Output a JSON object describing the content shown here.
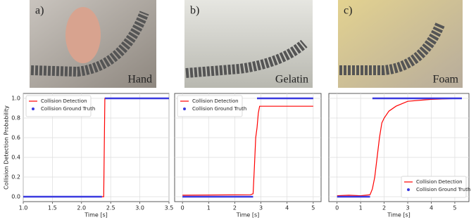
{
  "panels": [
    {
      "letter": "a)",
      "label": "Hand"
    },
    {
      "letter": "b)",
      "label": "Gelatin"
    },
    {
      "letter": "c)",
      "label": "Foam"
    }
  ],
  "chart_data": [
    {
      "type": "line",
      "ylabel": "Collision Detection Probability",
      "xlabel": "Time [s]",
      "xlim": [
        1.0,
        3.5
      ],
      "xticks": [
        {
          "value": 1.0,
          "label": "1.0"
        },
        {
          "value": 1.5,
          "label": "1.5"
        },
        {
          "value": 2.0,
          "label": "2.0"
        },
        {
          "value": 2.5,
          "label": "2.5"
        },
        {
          "value": 3.0,
          "label": "3.0"
        },
        {
          "value": 3.5,
          "label": "3.5"
        }
      ],
      "ylim": [
        -0.05,
        1.05
      ],
      "yticks": [
        {
          "value": 0,
          "label": "0.0"
        },
        {
          "value": 0.2,
          "label": "0.2"
        },
        {
          "value": 0.4,
          "label": "0.4"
        },
        {
          "value": 0.6,
          "label": "0.6"
        },
        {
          "value": 0.8,
          "label": "0.8"
        },
        {
          "value": 1.0,
          "label": "1.0"
        }
      ],
      "ytick_labels": true,
      "grid": true,
      "legend": "upper left",
      "series": [
        {
          "name": "Collision Detection",
          "color": "#ff0000",
          "marker": "line",
          "x": [
            1.0,
            2.38,
            2.4,
            3.5
          ],
          "values": [
            0,
            0,
            1,
            1
          ]
        },
        {
          "name": "Collision Ground Truth",
          "color": "#3a3adf",
          "marker": "dot",
          "x": [
            1.0,
            2.35,
            2.37,
            2.4,
            3.5
          ],
          "values": [
            0,
            0,
            null,
            1,
            1
          ]
        }
      ]
    },
    {
      "type": "line",
      "xlabel": "Time [s]",
      "xlim": [
        -0.3,
        5.3
      ],
      "xticks": [
        0,
        1,
        2,
        3,
        4,
        5
      ],
      "ylim": [
        -0.05,
        1.05
      ],
      "yticks": [
        0,
        0.2,
        0.4,
        0.6,
        0.8,
        1.0
      ],
      "ytick_labels": false,
      "grid": true,
      "legend": "upper left",
      "series": [
        {
          "name": "Collision Detection",
          "color": "#ff0000",
          "marker": "line",
          "x": [
            0,
            2.6,
            2.7,
            2.75,
            2.8,
            2.85,
            2.9,
            2.95,
            5
          ],
          "values": [
            0.015,
            0.02,
            0.03,
            0.3,
            0.6,
            0.7,
            0.85,
            0.92,
            0.92
          ]
        },
        {
          "name": "Collision Ground Truth",
          "color": "#3a3adf",
          "marker": "dot",
          "x": [
            0,
            2.7,
            2.75,
            2.85,
            5
          ],
          "values": [
            0,
            0,
            null,
            1,
            1
          ]
        }
      ]
    },
    {
      "type": "line",
      "xlabel": "Time [s]",
      "xlim": [
        -0.35,
        5.6
      ],
      "xticks": [
        0,
        1,
        2,
        3,
        4,
        5
      ],
      "ylim": [
        -0.05,
        1.05
      ],
      "yticks": [
        0,
        0.2,
        0.4,
        0.6,
        0.8,
        1.0
      ],
      "ytick_labels": false,
      "grid": true,
      "legend": "lower right",
      "series": [
        {
          "name": "Collision Detection",
          "color": "#ff0000",
          "marker": "line",
          "x": [
            0,
            0.5,
            1.0,
            1.4,
            1.5,
            1.6,
            1.7,
            1.8,
            1.9,
            2.0,
            2.2,
            2.5,
            3.0,
            4.0,
            5.3
          ],
          "values": [
            0.01,
            0.015,
            0.01,
            0.02,
            0.08,
            0.2,
            0.4,
            0.6,
            0.75,
            0.8,
            0.87,
            0.92,
            0.97,
            0.99,
            1.0
          ]
        },
        {
          "name": "Collision Ground Truth",
          "color": "#3a3adf",
          "marker": "dot",
          "x": [
            0,
            1.4,
            1.45,
            1.5,
            5.3
          ],
          "values": [
            0,
            0,
            null,
            1,
            1
          ]
        }
      ]
    }
  ]
}
